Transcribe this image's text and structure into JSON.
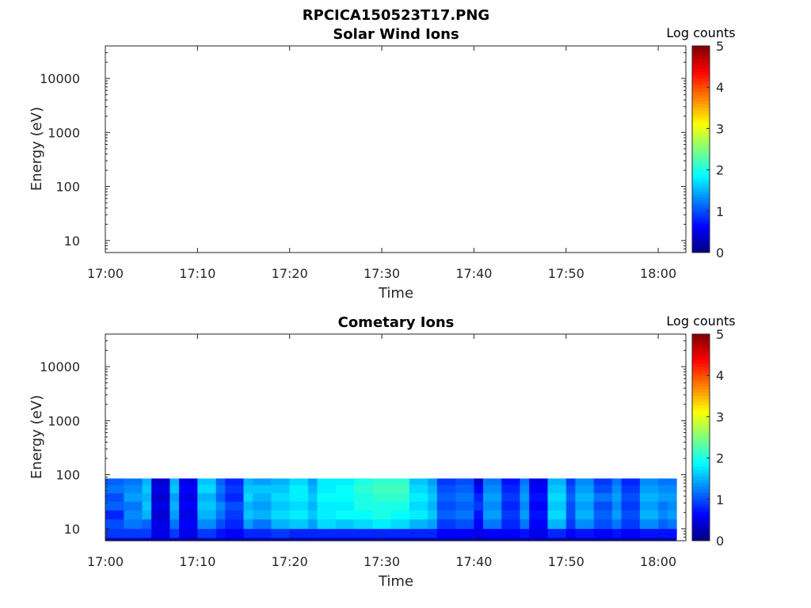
{
  "figure": {
    "title": "RPCICA150523T17.PNG"
  },
  "chart_data": [
    {
      "type": "heatmap",
      "title": "Solar Wind Ions",
      "xlabel": "Time",
      "ylabel": "Energy (eV)",
      "yscale": "log",
      "ylim": [
        6,
        40000
      ],
      "x_ticks": [
        "17:00",
        "17:10",
        "17:20",
        "17:30",
        "17:40",
        "17:50",
        "18:00"
      ],
      "y_ticks": [
        "10",
        "100",
        "1000",
        "10000"
      ],
      "y_tick_values": [
        10,
        100,
        1000,
        10000
      ],
      "colorbar": {
        "label": "Log counts",
        "range": [
          0,
          5
        ],
        "ticks": [
          "0",
          "1",
          "2",
          "3",
          "4",
          "5"
        ],
        "colormap": "jet"
      },
      "grid": false,
      "cells": []
    },
    {
      "type": "heatmap",
      "title": "Cometary Ions",
      "xlabel": "Time",
      "ylabel": "Energy (eV)",
      "yscale": "log",
      "ylim": [
        6,
        40000
      ],
      "x_ticks": [
        "17:00",
        "17:10",
        "17:20",
        "17:30",
        "17:40",
        "17:50",
        "18:00"
      ],
      "y_ticks": [
        "10",
        "100",
        "1000",
        "10000"
      ],
      "y_tick_values": [
        10,
        100,
        1000,
        10000
      ],
      "colorbar": {
        "label": "Log counts",
        "range": [
          0,
          5
        ],
        "ticks": [
          "0",
          "1",
          "2",
          "3",
          "4",
          "5"
        ],
        "colormap": "jet"
      },
      "grid": false,
      "time_start": "17:00",
      "time_end": "18:02",
      "energy_bins_eV": [
        6.5,
        10,
        15,
        22,
        32,
        46,
        65,
        85
      ],
      "columns": [
        {
          "t": "17:00",
          "levels": [
            0.9,
            1.0,
            0.8,
            1.1,
            1.0,
            1.2,
            1.1
          ]
        },
        {
          "t": "17:02",
          "levels": [
            0.9,
            1.2,
            1.3,
            1.2,
            1.4,
            1.3,
            1.2
          ]
        },
        {
          "t": "17:04",
          "levels": [
            0.9,
            1.1,
            1.5,
            1.6,
            1.5,
            1.6,
            1.5
          ]
        },
        {
          "t": "17:05",
          "levels": [
            0.5,
            0.5,
            0.4,
            0.5,
            0.4,
            0.5,
            0.4
          ]
        },
        {
          "t": "17:07",
          "levels": [
            0.9,
            1.2,
            1.4,
            1.5,
            1.4,
            1.6,
            1.5
          ]
        },
        {
          "t": "17:08",
          "levels": [
            0.5,
            0.6,
            0.5,
            0.6,
            0.5,
            0.6,
            0.5
          ]
        },
        {
          "t": "17:10",
          "levels": [
            0.9,
            1.3,
            1.5,
            1.6,
            1.5,
            1.7,
            1.6
          ]
        },
        {
          "t": "17:12",
          "levels": [
            0.7,
            1.0,
            1.2,
            1.3,
            1.1,
            1.2,
            1.1
          ]
        },
        {
          "t": "17:13",
          "levels": [
            0.6,
            0.8,
            0.9,
            1.0,
            0.8,
            0.9,
            0.8
          ]
        },
        {
          "t": "17:15",
          "levels": [
            0.8,
            1.4,
            1.6,
            1.5,
            1.7,
            1.6,
            1.5
          ]
        },
        {
          "t": "17:16",
          "levels": [
            0.8,
            1.2,
            1.5,
            1.4,
            1.5,
            1.6,
            1.4
          ]
        },
        {
          "t": "17:18",
          "levels": [
            0.9,
            1.5,
            1.7,
            1.6,
            1.7,
            1.6,
            1.5
          ]
        },
        {
          "t": "17:20",
          "levels": [
            0.8,
            1.6,
            1.8,
            1.7,
            1.8,
            1.8,
            1.7
          ]
        },
        {
          "t": "17:22",
          "levels": [
            0.8,
            1.4,
            1.6,
            1.5,
            1.6,
            1.5,
            1.4
          ]
        },
        {
          "t": "17:23",
          "levels": [
            0.8,
            1.7,
            1.8,
            1.8,
            1.9,
            1.8,
            1.8
          ]
        },
        {
          "t": "17:25",
          "levels": [
            0.8,
            1.6,
            1.9,
            1.8,
            1.9,
            1.9,
            1.8
          ]
        },
        {
          "t": "17:27",
          "levels": [
            0.8,
            1.7,
            1.9,
            2.0,
            2.0,
            2.1,
            2.0
          ]
        },
        {
          "t": "17:29",
          "levels": [
            0.8,
            1.8,
            2.0,
            2.0,
            2.1,
            2.2,
            2.1
          ]
        },
        {
          "t": "17:31",
          "levels": [
            0.8,
            1.7,
            1.9,
            2.0,
            2.1,
            2.2,
            2.1
          ]
        },
        {
          "t": "17:33",
          "levels": [
            0.8,
            1.5,
            1.8,
            1.7,
            1.8,
            1.7,
            1.6
          ]
        },
        {
          "t": "17:35",
          "levels": [
            0.8,
            1.4,
            1.6,
            1.5,
            1.6,
            1.5,
            1.4
          ]
        },
        {
          "t": "17:36",
          "levels": [
            0.6,
            0.9,
            1.1,
            1.0,
            1.1,
            1.0,
            0.9
          ]
        },
        {
          "t": "17:38",
          "levels": [
            0.6,
            1.0,
            1.2,
            1.1,
            1.2,
            1.1,
            1.0
          ]
        },
        {
          "t": "17:40",
          "levels": [
            0.5,
            0.6,
            0.7,
            0.9,
            0.8,
            0.6,
            0.4
          ]
        },
        {
          "t": "17:41",
          "levels": [
            0.6,
            1.2,
            1.4,
            1.3,
            1.4,
            1.3,
            1.2
          ]
        },
        {
          "t": "17:43",
          "levels": [
            0.6,
            0.8,
            0.9,
            0.8,
            0.9,
            0.8,
            0.7
          ]
        },
        {
          "t": "17:45",
          "levels": [
            0.7,
            1.2,
            1.4,
            1.3,
            1.4,
            1.3,
            1.2
          ]
        },
        {
          "t": "17:46",
          "levels": [
            0.5,
            0.6,
            0.7,
            0.6,
            0.7,
            0.6,
            0.5
          ]
        },
        {
          "t": "17:48",
          "levels": [
            0.8,
            1.5,
            1.7,
            1.6,
            1.7,
            1.6,
            1.5
          ]
        },
        {
          "t": "17:50",
          "levels": [
            0.6,
            0.9,
            1.0,
            1.0,
            1.1,
            1.0,
            0.9
          ]
        },
        {
          "t": "17:51",
          "levels": [
            0.7,
            1.3,
            1.5,
            1.4,
            1.5,
            1.4,
            1.3
          ]
        },
        {
          "t": "17:53",
          "levels": [
            0.6,
            1.0,
            1.1,
            1.0,
            1.2,
            1.0,
            0.9
          ]
        },
        {
          "t": "17:55",
          "levels": [
            0.7,
            1.2,
            1.4,
            1.3,
            1.4,
            1.3,
            1.2
          ]
        },
        {
          "t": "17:56",
          "levels": [
            0.6,
            0.9,
            1.0,
            0.9,
            1.0,
            0.9,
            0.8
          ]
        },
        {
          "t": "17:58",
          "levels": [
            0.7,
            1.3,
            1.5,
            1.4,
            1.5,
            1.4,
            1.3
          ]
        },
        {
          "t": "18:00",
          "levels": [
            0.7,
            1.1,
            1.3,
            1.2,
            1.4,
            1.3,
            1.2
          ]
        },
        {
          "t": "18:01",
          "levels": [
            0.7,
            1.2,
            1.4,
            1.3,
            1.4,
            1.3,
            1.2
          ]
        }
      ]
    }
  ]
}
